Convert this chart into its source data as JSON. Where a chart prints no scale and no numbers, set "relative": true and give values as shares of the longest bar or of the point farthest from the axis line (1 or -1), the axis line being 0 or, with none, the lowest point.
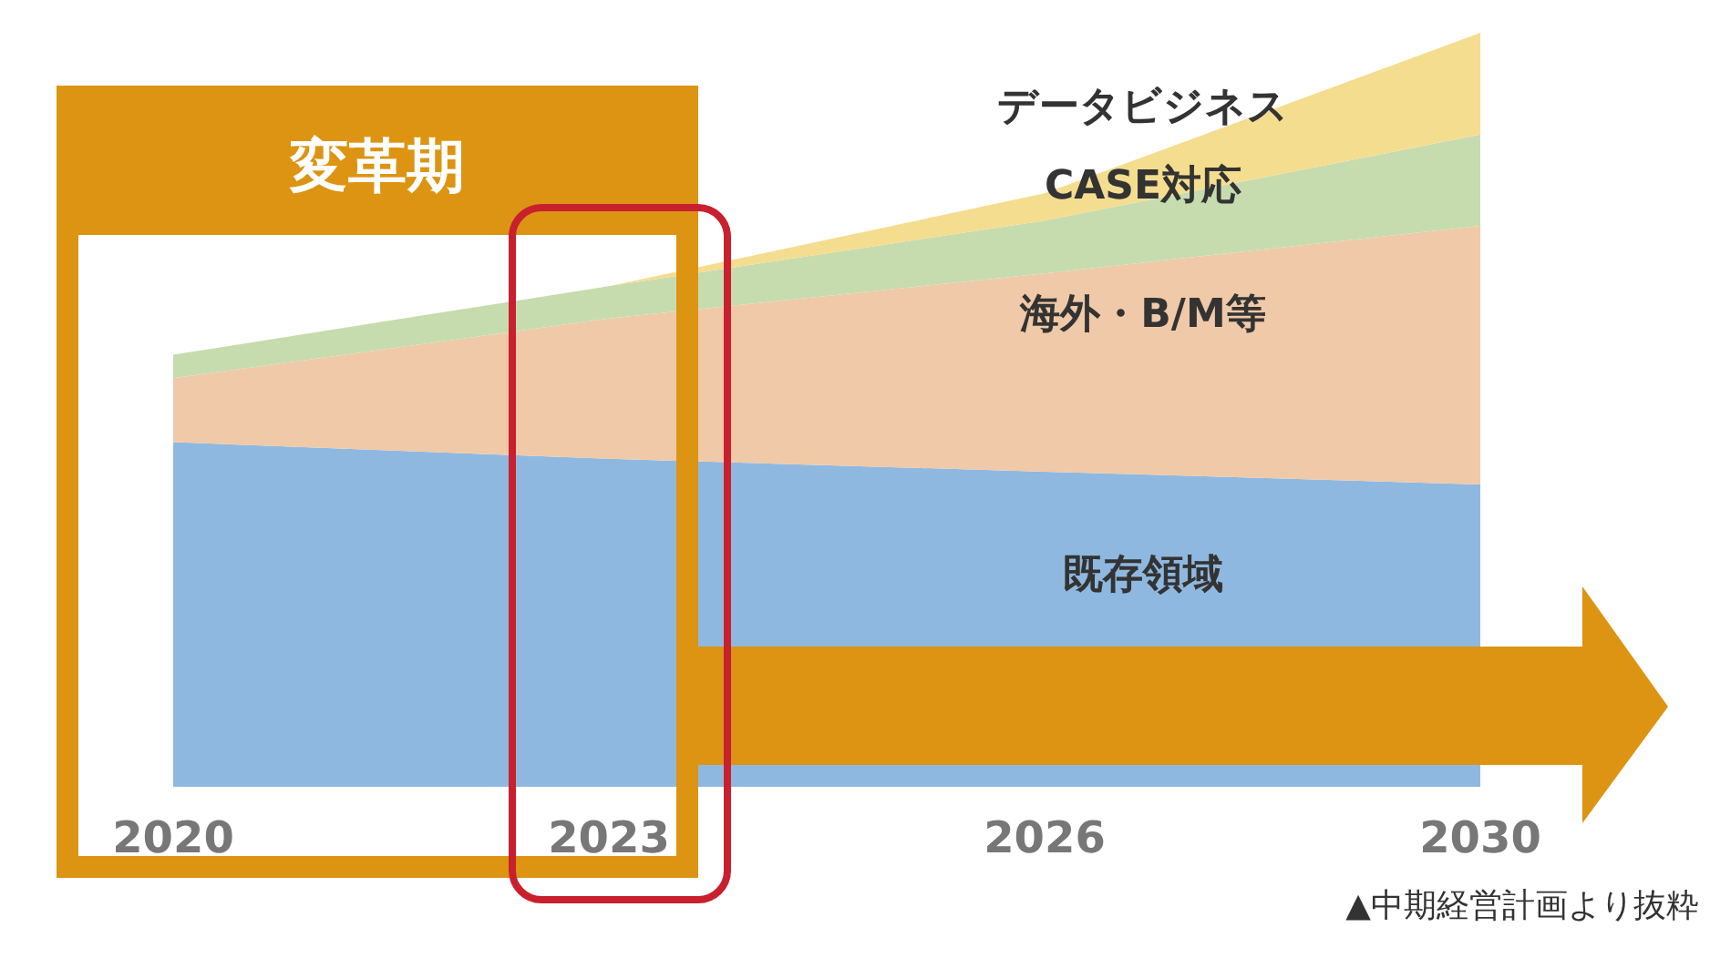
{
  "chart_data": {
    "type": "area",
    "stacked": true,
    "relative": true,
    "categories": [
      "2020",
      "2023",
      "2026",
      "2030"
    ],
    "series": [
      {
        "name": "既存領域",
        "color": "#8fb8e0",
        "values": [
          0.457,
          0.435,
          0.418,
          0.401
        ]
      },
      {
        "name": "海外・B/M等",
        "color": "#f0c9a8",
        "values": [
          0.085,
          0.186,
          0.263,
          0.343
        ]
      },
      {
        "name": "CASE対応",
        "color": "#c6dcae",
        "values": [
          0.031,
          0.043,
          0.07,
          0.121
        ]
      },
      {
        "name": "データビジネス",
        "color": "#f5dd8f",
        "values": [
          0,
          0,
          0.036,
          0.135
        ]
      }
    ],
    "annotations": [
      "変革期",
      "▲中期経営計画より抜粋"
    ]
  }
}
